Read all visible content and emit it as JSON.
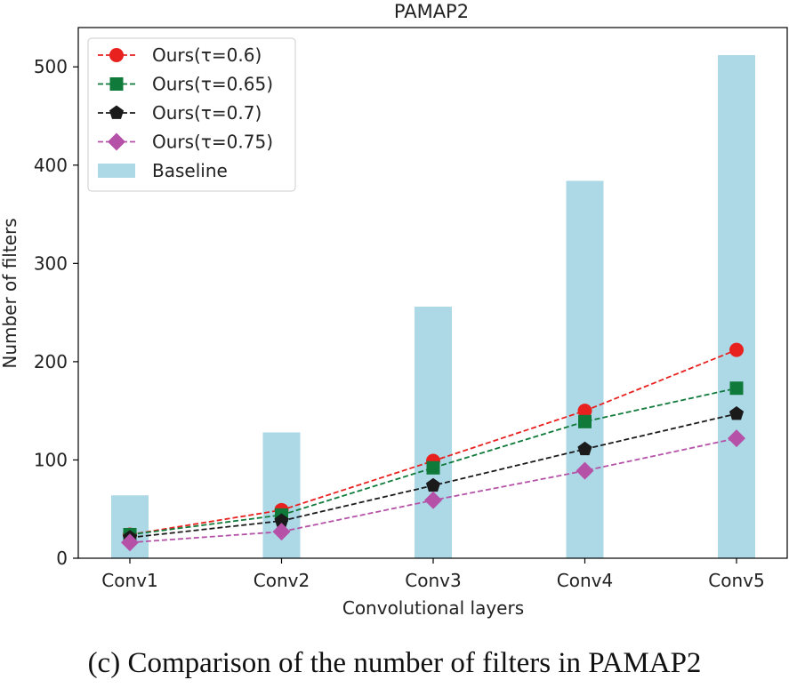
{
  "chart_data": {
    "type": "bar",
    "title": "PAMAP2",
    "xlabel": "Convolutional layers",
    "ylabel": "Number of filters",
    "categories": [
      "Conv1",
      "Conv2",
      "Conv3",
      "Conv4",
      "Conv5"
    ],
    "ylim": [
      0,
      540
    ],
    "yticks": [
      0,
      100,
      200,
      300,
      400,
      500
    ],
    "grid": false,
    "legend_position": "top-left",
    "bars": {
      "name": "Baseline",
      "values": [
        64,
        128,
        256,
        384,
        512
      ],
      "color": "#add8e6"
    },
    "series": [
      {
        "name": "Ours(τ=0.6)",
        "values": [
          24,
          49,
          99,
          150,
          212
        ],
        "color": "#e8211f",
        "marker": "circle"
      },
      {
        "name": "Ours(τ=0.65)",
        "values": [
          24,
          44,
          92,
          139,
          173
        ],
        "color": "#0f7a3a",
        "marker": "square"
      },
      {
        "name": "Ours(τ=0.7)",
        "values": [
          21,
          38,
          74,
          111,
          147
        ],
        "color": "#1a1a1a",
        "marker": "pentagon"
      },
      {
        "name": "Ours(τ=0.75)",
        "values": [
          16,
          27,
          59,
          89,
          122
        ],
        "color": "#b552a8",
        "marker": "diamond"
      }
    ]
  },
  "caption": "(c) Comparison of the number of filters in PAMAP2"
}
